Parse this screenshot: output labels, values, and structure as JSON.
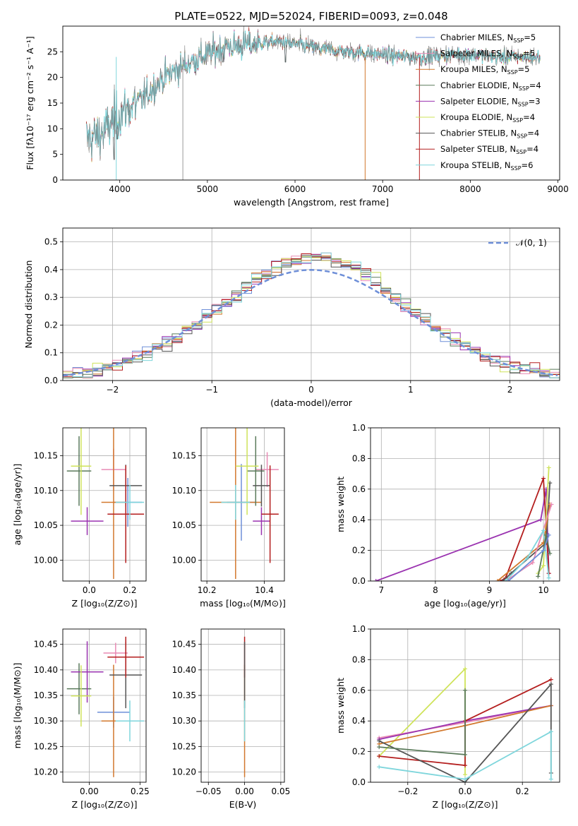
{
  "colors": {
    "chabrier_miles": "#6e8fd8",
    "salpeter_miles": "#e88ab4",
    "kroupa_miles": "#d2782d",
    "chabrier_elodie": "#5a7a5a",
    "salpeter_elodie": "#9a32b0",
    "kroupa_elodie": "#cfe35a",
    "chabrier_stelib": "#555555",
    "salpeter_stelib": "#b41e1e",
    "kroupa_stelib": "#7fd6dc",
    "normal_curve": "#6e8fd8",
    "grid": "#b0b0b0"
  },
  "legend_spectrum": [
    {
      "pre": "Chabrier MILES, N",
      "sub": "SSP",
      "post": "=5",
      "color_key": "chabrier_miles"
    },
    {
      "pre": "Salpeter MILES, N",
      "sub": "SSP",
      "post": "=5",
      "color_key": "salpeter_miles"
    },
    {
      "pre": "Kroupa MILES, N",
      "sub": "SSP",
      "post": "=5",
      "color_key": "kroupa_miles"
    },
    {
      "pre": "Chabrier ELODIE, N",
      "sub": "SSP",
      "post": "=4",
      "color_key": "chabrier_elodie"
    },
    {
      "pre": "Salpeter ELODIE, N",
      "sub": "SSP",
      "post": "=3",
      "color_key": "salpeter_elodie"
    },
    {
      "pre": "Kroupa ELODIE, N",
      "sub": "SSP",
      "post": "=4",
      "color_key": "kroupa_elodie"
    },
    {
      "pre": "Chabrier STELIB, N",
      "sub": "SSP",
      "post": "=4",
      "color_key": "chabrier_stelib"
    },
    {
      "pre": "Salpeter STELIB, N",
      "sub": "SSP",
      "post": "=4",
      "color_key": "salpeter_stelib"
    },
    {
      "pre": "Kroupa STELIB, N",
      "sub": "SSP",
      "post": "=6",
      "color_key": "kroupa_stelib"
    }
  ],
  "chart_data": [
    {
      "id": "spectrum",
      "type": "line",
      "title": "PLATE=0522, MJD=52024, FIBERID=0093, z=0.048",
      "xlabel": "wavelength [Angstrom, rest frame]",
      "ylabel": "Flux [fλ10⁻¹⁷ erg cm⁻² s⁻¹ A⁻¹]",
      "xlim": [
        3350,
        9020
      ],
      "ylim": [
        0,
        30
      ],
      "xticks": [
        4000,
        5000,
        6000,
        7000,
        8000,
        9000
      ],
      "yticks": [
        0,
        5,
        10,
        15,
        20,
        25
      ],
      "grid": false,
      "legend": "top-right",
      "continuum": [
        [
          3600,
          8
        ],
        [
          3800,
          9
        ],
        [
          4000,
          13
        ],
        [
          4200,
          15
        ],
        [
          4500,
          20
        ],
        [
          4800,
          23
        ],
        [
          5000,
          24.5
        ],
        [
          5200,
          26
        ],
        [
          5500,
          26.5
        ],
        [
          5800,
          27
        ],
        [
          6000,
          26.5
        ],
        [
          6300,
          25.5
        ],
        [
          6600,
          25
        ],
        [
          7000,
          24.5
        ],
        [
          7300,
          24
        ],
        [
          7500,
          24
        ],
        [
          7800,
          24.5
        ],
        [
          8000,
          24.5
        ],
        [
          8300,
          24
        ],
        [
          8600,
          24
        ],
        [
          8800,
          24
        ]
      ]
    },
    {
      "id": "residuals",
      "type": "bar",
      "xlabel": "(data-model)/error",
      "ylabel": "Normed distribution",
      "xlim": [
        -2.5,
        2.5
      ],
      "ylim": [
        0,
        0.55
      ],
      "xticks": [
        -2,
        -1,
        0,
        1,
        2
      ],
      "yticks": [
        0.0,
        0.1,
        0.2,
        0.3,
        0.4,
        0.5
      ],
      "bin_width": 0.1,
      "grid": true,
      "legend": "top-right",
      "legend_label": "𝒩(0, 1)"
    },
    {
      "id": "age_vs_Z",
      "type": "scatter",
      "xlabel": "Z [log₁₀(Z/Z⊙)]",
      "ylabel": "age  [log₁₀(age/yr)]",
      "xlim": [
        -0.13,
        0.28
      ],
      "ylim": [
        9.97,
        10.19
      ],
      "xticks": [
        0.0,
        0.2
      ],
      "yticks": [
        10.0,
        10.05,
        10.1,
        10.15
      ],
      "grid": true,
      "points": [
        {
          "c": "chabrier_miles",
          "x": 0.19,
          "y": 10.083,
          "ex": 0.07,
          "ey": 0.035
        },
        {
          "c": "salpeter_miles",
          "x": 0.12,
          "y": 10.13,
          "ex": 0.06,
          "ey": 0.03
        },
        {
          "c": "kroupa_miles",
          "x": 0.12,
          "y": 10.083,
          "ex": 0.06,
          "ey": 0.11
        },
        {
          "c": "chabrier_elodie",
          "x": -0.05,
          "y": 10.128,
          "ex": 0.06,
          "ey": 0.05
        },
        {
          "c": "salpeter_elodie",
          "x": -0.01,
          "y": 10.056,
          "ex": 0.08,
          "ey": 0.02
        },
        {
          "c": "kroupa_elodie",
          "x": -0.04,
          "y": 10.135,
          "ex": 0.05,
          "ey": 0.07
        },
        {
          "c": "chabrier_stelib",
          "x": 0.18,
          "y": 10.107,
          "ex": 0.08,
          "ey": 0.03
        },
        {
          "c": "salpeter_stelib",
          "x": 0.18,
          "y": 10.066,
          "ex": 0.09,
          "ey": 0.07
        },
        {
          "c": "kroupa_stelib",
          "x": 0.2,
          "y": 10.083,
          "ex": 0.07,
          "ey": 0.025
        }
      ]
    },
    {
      "id": "age_vs_mass",
      "type": "scatter",
      "xlabel": "mass [log₁₀(M/M⊙)]",
      "ylabel": "",
      "xlim": [
        10.18,
        10.47
      ],
      "ylim": [
        9.97,
        10.19
      ],
      "xticks": [
        10.2,
        10.4
      ],
      "yticks": [
        10.0,
        10.05,
        10.1,
        10.15
      ],
      "grid": true,
      "points": [
        {
          "c": "chabrier_miles",
          "x": 10.32,
          "y": 10.083,
          "ex": 0.05,
          "ey": 0.055
        },
        {
          "c": "salpeter_miles",
          "x": 10.41,
          "y": 10.13,
          "ex": 0.04,
          "ey": 0.025
        },
        {
          "c": "kroupa_miles",
          "x": 10.3,
          "y": 10.083,
          "ex": 0.09,
          "ey": 0.11
        },
        {
          "c": "chabrier_elodie",
          "x": 10.37,
          "y": 10.128,
          "ex": 0.03,
          "ey": 0.05
        },
        {
          "c": "salpeter_elodie",
          "x": 10.39,
          "y": 10.056,
          "ex": 0.03,
          "ey": 0.02
        },
        {
          "c": "kroupa_elodie",
          "x": 10.34,
          "y": 10.135,
          "ex": 0.04,
          "ey": 0.07
        },
        {
          "c": "chabrier_stelib",
          "x": 10.39,
          "y": 10.107,
          "ex": 0.03,
          "ey": 0.03
        },
        {
          "c": "salpeter_stelib",
          "x": 10.42,
          "y": 10.066,
          "ex": 0.03,
          "ey": 0.07
        },
        {
          "c": "kroupa_stelib",
          "x": 10.3,
          "y": 10.083,
          "ex": 0.05,
          "ey": 0.025
        }
      ]
    },
    {
      "id": "mass_weight_vs_age",
      "type": "line",
      "xlabel": "age  [log₁₀(age/yr)]",
      "ylabel": "mass weight",
      "xlim": [
        6.8,
        10.3
      ],
      "ylim": [
        0,
        1
      ],
      "xticks": [
        7,
        8,
        9,
        10
      ],
      "yticks": [
        0.0,
        0.2,
        0.4,
        0.6,
        0.8,
        1.0
      ],
      "grid": true,
      "series": [
        {
          "c": "salpeter_elodie",
          "pts": [
            [
              6.9,
              0.0
            ],
            [
              9.95,
              0.4
            ],
            [
              10.05,
              0.6
            ],
            [
              10.1,
              0.05
            ]
          ]
        },
        {
          "c": "salpeter_stelib",
          "pts": [
            [
              9.2,
              0.0
            ],
            [
              9.3,
              0.02
            ],
            [
              10.0,
              0.67
            ],
            [
              10.1,
              0.05
            ]
          ]
        },
        {
          "c": "chabrier_stelib",
          "pts": [
            [
              9.25,
              0.0
            ],
            [
              9.4,
              0.05
            ],
            [
              10.05,
              0.25
            ],
            [
              10.12,
              0.64
            ]
          ]
        },
        {
          "c": "kroupa_elodie",
          "pts": [
            [
              9.9,
              0.05
            ],
            [
              10.0,
              0.1
            ],
            [
              10.1,
              0.74
            ]
          ]
        },
        {
          "c": "kroupa_miles",
          "pts": [
            [
              9.15,
              0.0
            ],
            [
              10.0,
              0.25
            ],
            [
              10.12,
              0.5
            ]
          ]
        },
        {
          "c": "salpeter_miles",
          "pts": [
            [
              9.3,
              0.0
            ],
            [
              9.8,
              0.12
            ],
            [
              10.15,
              0.5
            ]
          ]
        },
        {
          "c": "kroupa_stelib",
          "pts": [
            [
              9.3,
              0.0
            ],
            [
              9.7,
              0.15
            ],
            [
              10.0,
              0.33
            ],
            [
              10.1,
              0.02
            ]
          ]
        },
        {
          "c": "chabrier_elodie",
          "pts": [
            [
              9.9,
              0.03
            ],
            [
              10.05,
              0.3
            ],
            [
              10.12,
              0.18
            ]
          ]
        },
        {
          "c": "chabrier_miles",
          "pts": [
            [
              9.35,
              0.0
            ],
            [
              10.0,
              0.2
            ],
            [
              10.1,
              0.3
            ]
          ]
        }
      ]
    },
    {
      "id": "mass_vs_Z",
      "type": "scatter",
      "xlabel": "Z [log₁₀(Z/Z⊙)]",
      "ylabel": "mass [log₁₀(M/M⊙)]",
      "xlim": [
        -0.13,
        0.28
      ],
      "ylim": [
        10.18,
        10.48
      ],
      "xticks": [
        0.0,
        0.25
      ],
      "yticks": [
        10.2,
        10.25,
        10.3,
        10.35,
        10.4,
        10.45
      ],
      "grid": true,
      "points": [
        {
          "c": "chabrier_miles",
          "x": 0.12,
          "y": 10.317,
          "ex": 0.08,
          "ey": 0.03
        },
        {
          "c": "salpeter_miles",
          "x": 0.13,
          "y": 10.433,
          "ex": 0.06,
          "ey": 0.02
        },
        {
          "c": "kroupa_miles",
          "x": 0.12,
          "y": 10.3,
          "ex": 0.06,
          "ey": 0.11
        },
        {
          "c": "chabrier_elodie",
          "x": -0.05,
          "y": 10.363,
          "ex": 0.06,
          "ey": 0.05
        },
        {
          "c": "salpeter_elodie",
          "x": -0.01,
          "y": 10.396,
          "ex": 0.08,
          "ey": 0.06
        },
        {
          "c": "kroupa_elodie",
          "x": -0.04,
          "y": 10.349,
          "ex": 0.05,
          "ey": 0.06
        },
        {
          "c": "chabrier_stelib",
          "x": 0.18,
          "y": 10.39,
          "ex": 0.08,
          "ey": 0.065
        },
        {
          "c": "salpeter_stelib",
          "x": 0.18,
          "y": 10.425,
          "ex": 0.09,
          "ey": 0.04
        },
        {
          "c": "kroupa_stelib",
          "x": 0.2,
          "y": 10.3,
          "ex": 0.07,
          "ey": 0.04
        }
      ]
    },
    {
      "id": "mass_vs_ebv",
      "type": "scatter",
      "xlabel": "E(B-V)",
      "ylabel": "",
      "xlim": [
        -0.06,
        0.055
      ],
      "ylim": [
        10.18,
        10.48
      ],
      "xticks": [
        -0.05,
        0.0,
        0.05
      ],
      "yticks": [
        10.2,
        10.25,
        10.3,
        10.35,
        10.4,
        10.45
      ],
      "grid": true,
      "points": [
        {
          "c": "kroupa_miles",
          "x": 0.0,
          "y": 10.3,
          "ex": 0.0,
          "ey": 0.11
        },
        {
          "c": "salpeter_stelib",
          "x": 0.0,
          "y": 10.425,
          "ex": 0.0,
          "ey": 0.04
        },
        {
          "c": "chabrier_stelib",
          "x": 0.0,
          "y": 10.39,
          "ex": 0.0,
          "ey": 0.065
        },
        {
          "c": "kroupa_stelib",
          "x": 0.0,
          "y": 10.3,
          "ex": 0.0,
          "ey": 0.04
        }
      ]
    },
    {
      "id": "mass_weight_vs_Z",
      "type": "line",
      "xlabel": "Z [log₁₀(Z/Z⊙)]",
      "ylabel": "mass weight",
      "xlim": [
        -0.33,
        0.33
      ],
      "ylim": [
        0,
        1
      ],
      "xticks": [
        -0.2,
        0.0,
        0.2
      ],
      "yticks": [
        0.0,
        0.2,
        0.4,
        0.6,
        0.8,
        1.0
      ],
      "grid": true,
      "series": [
        {
          "c": "kroupa_elodie",
          "pts": [
            [
              -0.3,
              0.17
            ],
            [
              0.0,
              0.74
            ],
            [
              0.0,
              0.05
            ]
          ]
        },
        {
          "c": "salpeter_miles",
          "pts": [
            [
              -0.3,
              0.29
            ],
            [
              0.0,
              0.39
            ],
            [
              0.3,
              0.5
            ]
          ]
        },
        {
          "c": "salpeter_elodie",
          "pts": [
            [
              -0.3,
              0.28
            ],
            [
              0.0,
              0.4
            ],
            [
              0.3,
              0.5
            ]
          ]
        },
        {
          "c": "kroupa_miles",
          "pts": [
            [
              -0.3,
              0.25
            ],
            [
              0.0,
              0.37
            ],
            [
              0.3,
              0.5
            ]
          ]
        },
        {
          "c": "salpeter_stelib",
          "pts": [
            [
              -0.3,
              0.17
            ],
            [
              0.0,
              0.11
            ],
            [
              0.0,
              0.4
            ],
            [
              0.3,
              0.67
            ]
          ]
        },
        {
          "c": "chabrier_stelib",
          "pts": [
            [
              -0.3,
              0.27
            ],
            [
              0.0,
              0.0
            ],
            [
              0.3,
              0.64
            ],
            [
              0.3,
              0.06
            ]
          ]
        },
        {
          "c": "chabrier_elodie",
          "pts": [
            [
              -0.3,
              0.23
            ],
            [
              0.0,
              0.18
            ],
            [
              0.0,
              0.6
            ]
          ]
        },
        {
          "c": "kroupa_stelib",
          "pts": [
            [
              -0.3,
              0.1
            ],
            [
              0.0,
              0.02
            ],
            [
              0.3,
              0.33
            ],
            [
              0.3,
              0.02
            ]
          ]
        }
      ]
    }
  ]
}
